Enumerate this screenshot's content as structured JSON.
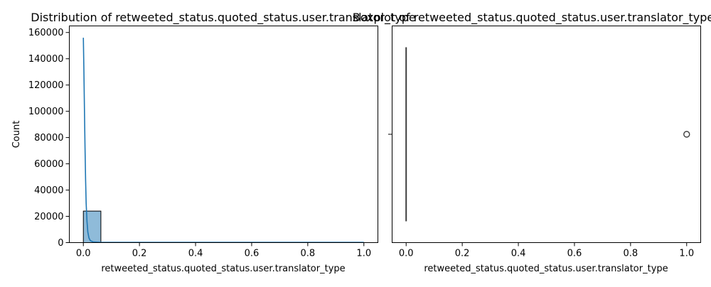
{
  "chart_data": [
    {
      "type": "histogram",
      "title": "Distribution of retweeted_status.quoted_status.user.translator_type",
      "xlabel": "retweeted_status.quoted_status.user.translator_type",
      "ylabel": "Count",
      "xlim": [
        -0.05,
        1.05
      ],
      "ylim": [
        0,
        165000
      ],
      "xticks": [
        0.0,
        0.2,
        0.4,
        0.6,
        0.8,
        1.0
      ],
      "xtick_labels": [
        "0.0",
        "0.2",
        "0.4",
        "0.6",
        "0.8",
        "1.0"
      ],
      "yticks": [
        0,
        20000,
        40000,
        60000,
        80000,
        100000,
        120000,
        140000,
        160000
      ],
      "ytick_labels": [
        "0",
        "20000",
        "40000",
        "60000",
        "80000",
        "100000",
        "120000",
        "140000",
        "160000"
      ],
      "bins": [
        {
          "x0": 0.0,
          "x1": 0.0625,
          "count": 24000
        }
      ],
      "kde": {
        "x": [
          0.0,
          0.002,
          0.004,
          0.006,
          0.008,
          0.01,
          0.013,
          0.016,
          0.02,
          0.025,
          0.035,
          0.06,
          0.2,
          0.4,
          0.6,
          0.8,
          1.0
        ],
        "y": [
          156000,
          130000,
          100000,
          72000,
          48000,
          30000,
          16000,
          8000,
          3500,
          1500,
          500,
          200,
          150,
          150,
          150,
          150,
          150
        ]
      },
      "bar_color": "#1f77b4",
      "line_color": "#1f77b4",
      "grid": false
    },
    {
      "type": "boxplot",
      "title": "Boxplot of retweeted_status.quoted_status.user.translator_type",
      "xlabel": "retweeted_status.quoted_status.user.translator_type",
      "xlim": [
        -0.05,
        1.05
      ],
      "xticks": [
        0.0,
        0.2,
        0.4,
        0.6,
        0.8,
        1.0
      ],
      "xtick_labels": [
        "0.0",
        "0.2",
        "0.4",
        "0.6",
        "0.8",
        "1.0"
      ],
      "box": {
        "q1": 0.0,
        "median": 0.0,
        "q3": 0.0,
        "whisker_low": 0.0,
        "whisker_high": 0.0
      },
      "outliers": [
        1.0
      ],
      "color": "#1f77b4",
      "grid": false
    }
  ]
}
